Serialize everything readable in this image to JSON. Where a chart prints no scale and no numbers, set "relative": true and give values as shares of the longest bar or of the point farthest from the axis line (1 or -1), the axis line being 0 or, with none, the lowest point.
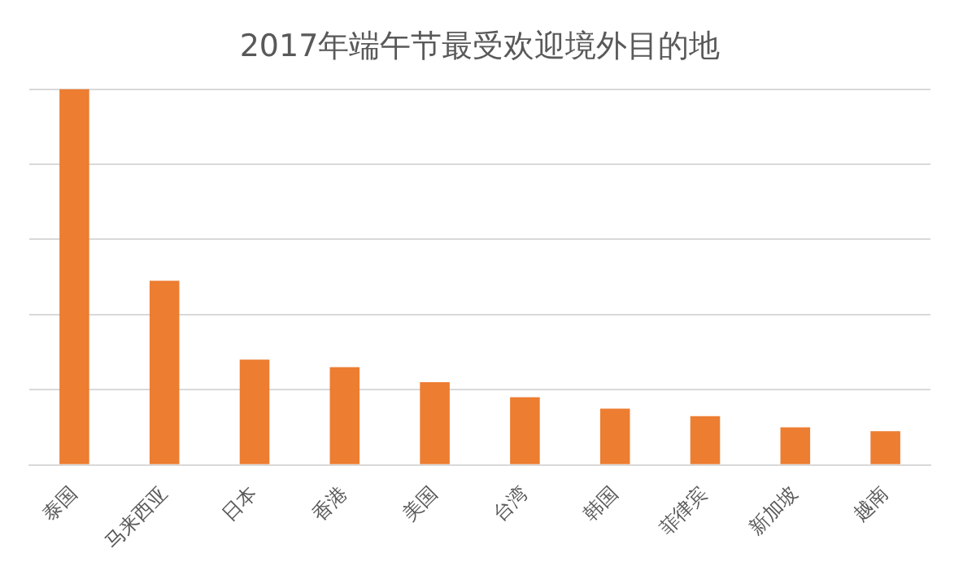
{
  "chart_data": {
    "type": "bar",
    "title": "2017年端午节最受欢迎境外目的地",
    "categories": [
      "泰国",
      "马来西亚",
      "日本",
      "香港",
      "美国",
      "台湾",
      "韩国",
      "菲律宾",
      "新加坡",
      "越南"
    ],
    "values": [
      1,
      0.49,
      0.28,
      0.26,
      0.22,
      0.18,
      0.15,
      0.13,
      0.1,
      0.09
    ],
    "color": "#ed7d31",
    "relative": true,
    "grid": "y"
  }
}
